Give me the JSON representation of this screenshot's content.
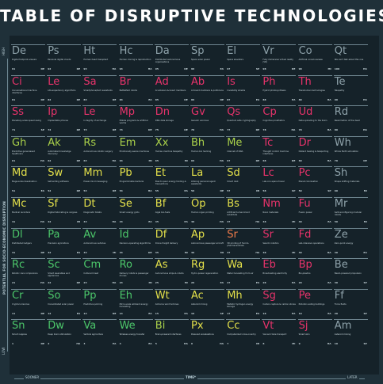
{
  "chart_data": {
    "type": "table",
    "title": "TABLE OF DISRUPTIVE TECHNOLOGIES",
    "ylabel": "POTENTIAL FOR SOCIO-ECONOMIC DISRUPTION",
    "y_high_label": "HIGH",
    "y_low_label": "LOW",
    "xlabel": "TIME*",
    "x_sooner_label": "SOONER",
    "x_later_label": "LATER",
    "colors": {
      "grey": "#8fa3ab",
      "pink": "#e8336b",
      "orange": "#ef7b4a",
      "yellow": "#e3e04a",
      "lime": "#a9d04a",
      "green": "#4cc76a"
    },
    "elements": [
      {
        "row": 1,
        "col": 1,
        "symbol": "De",
        "name": "Digital footprint erasure",
        "number": "91",
        "cat": "DE",
        "color": "grey"
      },
      {
        "row": 1,
        "col": 2,
        "symbol": "Ps",
        "name": "Personal digital clouds",
        "number": "92",
        "cat": "DE",
        "color": "grey"
      },
      {
        "row": 1,
        "col": 3,
        "symbol": "Ht",
        "name": "Human head transplant",
        "number": "93",
        "cat": "HA",
        "color": "grey"
      },
      {
        "row": 1,
        "col": 4,
        "symbol": "Hc",
        "name": "Human cloning & reproduction",
        "number": "94",
        "cat": "HA",
        "color": "grey"
      },
      {
        "row": 1,
        "col": 5,
        "symbol": "Da",
        "name": "Distributed autonomous organisations",
        "number": "95",
        "cat": "DE",
        "color": "grey"
      },
      {
        "row": 1,
        "col": 6,
        "symbol": "Sp",
        "name": "Space solar power",
        "number": "96",
        "cat": "EA",
        "color": "grey"
      },
      {
        "row": 1,
        "col": 7,
        "symbol": "El",
        "name": "Space elevators",
        "number": "97",
        "cat": "SP",
        "color": "grey"
      },
      {
        "row": 1,
        "col": 8,
        "symbol": "Vr",
        "name": "Fully immersive virtual reality (VR)",
        "number": "98",
        "cat": "DE",
        "color": "grey"
      },
      {
        "row": 1,
        "col": 9,
        "symbol": "Co",
        "name": "Artificial consciousness",
        "number": "99",
        "cat": "MI",
        "color": "grey"
      },
      {
        "row": 1,
        "col": 10,
        "symbol": "Qt",
        "name": "We can't talk about this one",
        "number": "100",
        "cat": "HA",
        "color": "grey"
      },
      {
        "row": 2,
        "col": 1,
        "symbol": "Ci",
        "name": "Conversational machine interfaces",
        "number": "81",
        "cat": "DE",
        "color": "pink"
      },
      {
        "row": 2,
        "col": 2,
        "symbol": "Le",
        "name": "Life-expectancy algorithms",
        "number": "82",
        "cat": "DE",
        "color": "pink"
      },
      {
        "row": 2,
        "col": 3,
        "symbol": "Sa",
        "name": "Smartphone/tech assistants",
        "number": "83",
        "cat": "DE",
        "color": "pink"
      },
      {
        "row": 2,
        "col": 4,
        "symbol": "Br",
        "name": "Battlefield robots",
        "number": "84",
        "cat": "EA",
        "color": "pink"
      },
      {
        "row": 2,
        "col": 5,
        "symbol": "Ad",
        "name": "AI advisors & board members",
        "number": "85",
        "cat": "DE",
        "color": "pink"
      },
      {
        "row": 2,
        "col": 6,
        "symbol": "Ab",
        "name": "AI board members & politicians",
        "number": "86",
        "cat": "DE",
        "color": "pink"
      },
      {
        "row": 2,
        "col": 7,
        "symbol": "Is",
        "name": "Invisibility shields",
        "number": "87",
        "cat": "EA",
        "color": "pink"
      },
      {
        "row": 2,
        "col": 8,
        "symbol": "Ph",
        "name": "Hybrid photosynthesis",
        "number": "88",
        "cat": "EA",
        "color": "pink"
      },
      {
        "row": 2,
        "col": 9,
        "symbol": "Th",
        "name": "Transhuman technologies",
        "number": "89",
        "cat": "HA",
        "color": "pink"
      },
      {
        "row": 2,
        "col": 10,
        "symbol": "Te",
        "name": "Telepathy",
        "number": "90",
        "cat": "HA",
        "color": "grey"
      },
      {
        "row": 3,
        "col": 1,
        "symbol": "Ss",
        "name": "Planetary-scale speed swing",
        "number": "71",
        "cat": "SP",
        "color": "pink"
      },
      {
        "row": 3,
        "col": 2,
        "symbol": "Ip",
        "name": "Implantable phones",
        "number": "72",
        "cat": "DE",
        "color": "pink"
      },
      {
        "row": 3,
        "col": 3,
        "symbol": "Le",
        "name": "In-tegrity of exchange",
        "number": "73",
        "cat": "DE",
        "color": "pink"
      },
      {
        "row": 3,
        "col": 4,
        "symbol": "Mp",
        "name": "Mobile programs & artificial worlds",
        "number": "74",
        "cat": "DE",
        "color": "pink"
      },
      {
        "row": 3,
        "col": 5,
        "symbol": "Dn",
        "name": "DNA data storage",
        "number": "75",
        "cat": "DE",
        "color": "pink"
      },
      {
        "row": 3,
        "col": 6,
        "symbol": "Gv",
        "name": "Genetic vaccines",
        "number": "76",
        "cat": "HA",
        "color": "pink"
      },
      {
        "row": 3,
        "col": 7,
        "symbol": "Qs",
        "name": "Quantum safe cryptography",
        "number": "77",
        "cat": "DE",
        "color": "pink"
      },
      {
        "row": 3,
        "col": 8,
        "symbol": "Cp",
        "name": "Cognitive prosthetics",
        "number": "78",
        "cat": "HA",
        "color": "pink"
      },
      {
        "row": 3,
        "col": 9,
        "symbol": "Ud",
        "name": "Data uploading to the brain",
        "number": "79",
        "cat": "HA",
        "color": "pink"
      },
      {
        "row": 3,
        "col": 10,
        "symbol": "Rd",
        "name": "Reanimation of the dead",
        "number": "80",
        "cat": "HA",
        "color": "grey"
      },
      {
        "row": 4,
        "col": 1,
        "symbol": "Gh",
        "name": "Predictive gene-based healthcare",
        "number": "61",
        "cat": "HA",
        "color": "lime"
      },
      {
        "row": 4,
        "col": 2,
        "symbol": "Ak",
        "name": "Automated knowledge discovery",
        "number": "62",
        "cat": "DE",
        "color": "lime"
      },
      {
        "row": 4,
        "col": 3,
        "symbol": "Rs",
        "name": "Autonomous robotic surgery",
        "number": "63",
        "cat": "HA",
        "color": "lime"
      },
      {
        "row": 4,
        "col": 4,
        "symbol": "Em",
        "name": "Emotionally aware machines",
        "number": "64",
        "cat": "MI",
        "color": "lime"
      },
      {
        "row": 4,
        "col": 5,
        "symbol": "Xx",
        "name": "Human-machine telepathy",
        "number": "65",
        "cat": "MI",
        "color": "lime"
      },
      {
        "row": 4,
        "col": 6,
        "symbol": "Bh",
        "name": "Human bio hacking",
        "number": "66",
        "cat": "HA",
        "color": "lime"
      },
      {
        "row": 4,
        "col": 7,
        "symbol": "Me",
        "name": "Internet of DNA",
        "number": "67",
        "cat": "DE",
        "color": "lime"
      },
      {
        "row": 4,
        "col": 8,
        "symbol": "Tc",
        "name": "Thought control machine interfaces",
        "number": "68",
        "cat": "DE",
        "color": "pink"
      },
      {
        "row": 4,
        "col": 9,
        "symbol": "Dr",
        "name": "Distant healing & teleporting",
        "number": "69",
        "cat": "HA",
        "color": "pink"
      },
      {
        "row": 4,
        "col": 10,
        "symbol": "Wh",
        "name": "Whole Earth simulation",
        "number": "70",
        "cat": "DE",
        "color": "grey"
      },
      {
        "row": 5,
        "col": 1,
        "symbol": "Md",
        "name": "Mega-scale desalination",
        "number": "51",
        "cat": "EA",
        "color": "yellow"
      },
      {
        "row": 5,
        "col": 2,
        "symbol": "Sw",
        "name": "Self-writing software",
        "number": "52",
        "cat": "DE",
        "color": "yellow"
      },
      {
        "row": 5,
        "col": 3,
        "symbol": "Mm",
        "name": "Power-mind messaging",
        "number": "53",
        "cat": "DE",
        "color": "yellow"
      },
      {
        "row": 5,
        "col": 4,
        "symbol": "Pb",
        "name": "Programmable bacteria",
        "number": "54",
        "cat": "HA",
        "color": "yellow"
      },
      {
        "row": 5,
        "col": 5,
        "symbol": "Et",
        "name": "Peer-to-peer energy trading & transactions",
        "number": "55",
        "cat": "EA",
        "color": "yellow"
      },
      {
        "row": 5,
        "col": 6,
        "symbol": "La",
        "name": "Lifelong personal agent assistants",
        "number": "56",
        "cat": "DE",
        "color": "yellow"
      },
      {
        "row": 5,
        "col": 7,
        "symbol": "Sd",
        "name": "Smart dust",
        "number": "57",
        "cat": "MI",
        "color": "yellow"
      },
      {
        "row": 5,
        "col": 8,
        "symbol": "Lc",
        "name": "Lab-con-space travel",
        "number": "58",
        "cat": "SP",
        "color": "pink"
      },
      {
        "row": 5,
        "col": 9,
        "symbol": "Pc",
        "name": "Planet colonisation",
        "number": "59",
        "cat": "SP",
        "color": "pink"
      },
      {
        "row": 5,
        "col": 10,
        "symbol": "Sh",
        "name": "Shape shifting materials",
        "number": "60",
        "cat": "MI",
        "color": "grey"
      },
      {
        "row": 6,
        "col": 1,
        "symbol": "Mc",
        "name": "Medical recorders",
        "number": "41",
        "cat": "HA",
        "color": "yellow"
      },
      {
        "row": 6,
        "col": 2,
        "symbol": "Sf",
        "name": "Digital fabricating & cargoes",
        "number": "42",
        "cat": "MI",
        "color": "yellow"
      },
      {
        "row": 6,
        "col": 3,
        "symbol": "Dt",
        "name": "Diagnostic toilets",
        "number": "43",
        "cat": "HA",
        "color": "yellow"
      },
      {
        "row": 6,
        "col": 4,
        "symbol": "Se",
        "name": "Smart energy grids",
        "number": "44",
        "cat": "EA",
        "color": "yellow"
      },
      {
        "row": 6,
        "col": 5,
        "symbol": "Bf",
        "name": "Algal bio-fuels",
        "number": "45",
        "cat": "EA",
        "color": "yellow"
      },
      {
        "row": 6,
        "col": 6,
        "symbol": "Op",
        "name": "Human organ printing",
        "number": "46",
        "cat": "HA",
        "color": "yellow"
      },
      {
        "row": 6,
        "col": 7,
        "symbol": "Bs",
        "name": "Artificial human blood substitute",
        "number": "47",
        "cat": "HA",
        "color": "yellow"
      },
      {
        "row": 6,
        "col": 8,
        "symbol": "Nm",
        "name": "Nano materials",
        "number": "48",
        "cat": "MI",
        "color": "pink"
      },
      {
        "row": 6,
        "col": 9,
        "symbol": "Fu",
        "name": "Fusion power",
        "number": "49",
        "cat": "EA",
        "color": "pink"
      },
      {
        "row": 6,
        "col": 10,
        "symbol": "Mr",
        "name": "Self-reconfiguring modular robots",
        "number": "50",
        "cat": "MI",
        "color": "grey"
      },
      {
        "row": 7,
        "col": 1,
        "symbol": "Dl",
        "name": "Distributed ledgers",
        "number": "31",
        "cat": "DE",
        "color": "green"
      },
      {
        "row": 7,
        "col": 2,
        "symbol": "Pa",
        "name": "Precision agriculture",
        "number": "32",
        "cat": "EA",
        "color": "green"
      },
      {
        "row": 7,
        "col": 3,
        "symbol": "Av",
        "name": "Autonomous vehicles",
        "number": "33",
        "cat": "MI",
        "color": "green"
      },
      {
        "row": 7,
        "col": 4,
        "symbol": "Id",
        "name": "Decision-operating algorithms",
        "number": "34",
        "cat": "DE",
        "color": "green"
      },
      {
        "row": 7,
        "col": 5,
        "symbol": "Df",
        "name": "Drone freight delivery",
        "number": "35",
        "cat": "MI",
        "color": "yellow"
      },
      {
        "row": 7,
        "col": 6,
        "symbol": "Ap",
        "name": "Autonomous passenger aircraft",
        "number": "36",
        "cat": "MI",
        "color": "yellow"
      },
      {
        "row": 7,
        "col": 7,
        "symbol": "Sr",
        "name": "3D printing of food & pharmaceuticals",
        "number": "37",
        "cat": "HA",
        "color": "orange"
      },
      {
        "row": 7,
        "col": 8,
        "symbol": "Sr",
        "name": "Swarm robotics",
        "number": "38",
        "cat": "MI",
        "color": "pink"
      },
      {
        "row": 7,
        "col": 9,
        "symbol": "Fd",
        "name": "Lab-intensive operations",
        "number": "39",
        "cat": "HA",
        "color": "pink"
      },
      {
        "row": 7,
        "col": 10,
        "symbol": "Ze",
        "name": "Zero-point energy",
        "number": "40",
        "cat": "EA",
        "color": "grey"
      },
      {
        "row": 8,
        "col": 1,
        "symbol": "Rc",
        "name": "Robotic care companions",
        "number": "21",
        "cat": "HA",
        "color": "green"
      },
      {
        "row": 8,
        "col": 2,
        "symbol": "Sc",
        "name": "Smart wearables and appliances",
        "number": "22",
        "cat": "DE",
        "color": "green"
      },
      {
        "row": 8,
        "col": 3,
        "symbol": "Cm",
        "name": "Cultured meat",
        "number": "23",
        "cat": "HA",
        "color": "green"
      },
      {
        "row": 8,
        "col": 4,
        "symbol": "Ro",
        "name": "Delivery robots & passenger drones",
        "number": "24",
        "cat": "MI",
        "color": "green"
      },
      {
        "row": 8,
        "col": 5,
        "symbol": "As",
        "name": "Autonomous ships & robots",
        "number": "25",
        "cat": "MI",
        "color": "yellow"
      },
      {
        "row": 8,
        "col": 6,
        "symbol": "Rg",
        "name": "Hydro-power regeneration",
        "number": "26",
        "cat": "EA",
        "color": "yellow"
      },
      {
        "row": 8,
        "col": 7,
        "symbol": "Wa",
        "name": "Water harvesting from air",
        "number": "27",
        "cat": "EA",
        "color": "yellow"
      },
      {
        "row": 8,
        "col": 8,
        "symbol": "Eb",
        "name": "Broadcasting electricity",
        "number": "28",
        "cat": "EA",
        "color": "pink"
      },
      {
        "row": 8,
        "col": 9,
        "symbol": "Bp",
        "name": "Bio-plastics",
        "number": "29",
        "cat": "EA",
        "color": "pink"
      },
      {
        "row": 8,
        "col": 10,
        "symbol": "Be",
        "name": "Beam-powered propulsion",
        "number": "30",
        "cat": "SP",
        "color": "grey"
      },
      {
        "row": 9,
        "col": 1,
        "symbol": "Cr",
        "name": "Cryptocurrencies",
        "number": "11",
        "cat": "DE",
        "color": "green"
      },
      {
        "row": 9,
        "col": 2,
        "symbol": "So",
        "name": "Consolidated solar power",
        "number": "12",
        "cat": "EA",
        "color": "green"
      },
      {
        "row": 9,
        "col": 3,
        "symbol": "Pp",
        "name": "Predictive policing",
        "number": "13",
        "cat": "DE",
        "color": "green"
      },
      {
        "row": 9,
        "col": 4,
        "symbol": "Eh",
        "name": "Micro-scale ambient energy harvesting",
        "number": "14",
        "cat": "EA",
        "color": "green"
      },
      {
        "row": 9,
        "col": 5,
        "symbol": "Wt",
        "name": "Airborne wind turbines",
        "number": "15",
        "cat": "EA",
        "color": "yellow"
      },
      {
        "row": 9,
        "col": 6,
        "symbol": "Ac",
        "name": "Asteroid mining",
        "number": "16",
        "cat": "SP",
        "color": "yellow"
      },
      {
        "row": 9,
        "col": 7,
        "symbol": "Mh",
        "name": "Metallic hydrogen energy storage",
        "number": "17",
        "cat": "EA",
        "color": "yellow"
      },
      {
        "row": 9,
        "col": 8,
        "symbol": "Sg",
        "name": "Carbon capture & carbon stores",
        "number": "18",
        "cat": "EA",
        "color": "pink"
      },
      {
        "row": 9,
        "col": 9,
        "symbol": "Pe",
        "name": "Pollution eating buildings",
        "number": "19",
        "cat": "EA",
        "color": "pink"
      },
      {
        "row": 9,
        "col": 10,
        "symbol": "Ff",
        "name": "Force fields",
        "number": "20",
        "cat": "SP",
        "color": "grey"
      },
      {
        "row": 10,
        "col": 1,
        "symbol": "Sn",
        "name": "Smart nappies",
        "number": "1",
        "cat": "DE",
        "color": "green"
      },
      {
        "row": 10,
        "col": 2,
        "symbol": "Dw",
        "name": "Deep brain stimulation",
        "number": "2",
        "cat": "HA",
        "color": "green"
      },
      {
        "row": 10,
        "col": 3,
        "symbol": "Va",
        "name": "Vertical agriculture",
        "number": "3",
        "cat": "EA",
        "color": "green"
      },
      {
        "row": 10,
        "col": 4,
        "symbol": "We",
        "name": "Wireless energy transfer",
        "number": "4",
        "cat": "EA",
        "color": "green"
      },
      {
        "row": 10,
        "col": 5,
        "symbol": "Bi",
        "name": "Brain-powered interfaces",
        "number": "5",
        "cat": "HA",
        "color": "lime"
      },
      {
        "row": 10,
        "col": 6,
        "symbol": "Px",
        "name": "Powered exoskeletons",
        "number": "6",
        "cat": "HA",
        "color": "yellow"
      },
      {
        "row": 10,
        "col": 7,
        "symbol": "Cc",
        "name": "Computerized cross-country",
        "number": "7",
        "cat": "MI",
        "color": "yellow"
      },
      {
        "row": 10,
        "col": 8,
        "symbol": "Vt",
        "name": "Vacuum tube transport",
        "number": "8",
        "cat": "MI",
        "color": "pink"
      },
      {
        "row": 10,
        "col": 9,
        "symbol": "Sj",
        "name": "Smart skin",
        "number": "9",
        "cat": "HA",
        "color": "pink"
      },
      {
        "row": 10,
        "col": 10,
        "symbol": "Am",
        "name": "Asteroid mining",
        "number": "10",
        "cat": "SP",
        "color": "grey"
      }
    ]
  }
}
